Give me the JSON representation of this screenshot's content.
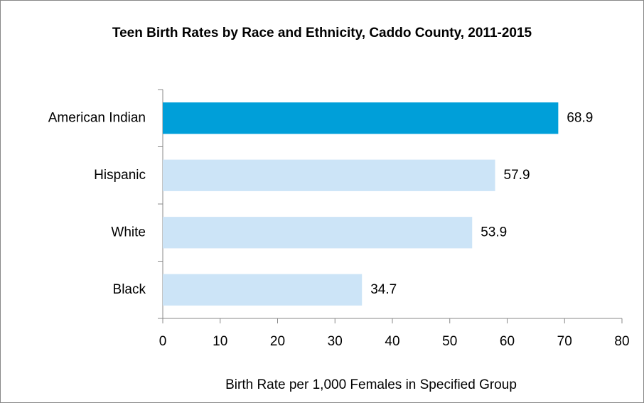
{
  "chart_data": {
    "type": "bar",
    "orientation": "horizontal",
    "title": "Teen Birth Rates by Race and Ethnicity, Caddo County, 2011-2015",
    "categories": [
      "American Indian",
      "Hispanic",
      "White",
      "Black"
    ],
    "values": [
      68.9,
      57.9,
      53.9,
      34.7
    ],
    "colors": [
      "#009fd9",
      "#cce4f7",
      "#cce4f7",
      "#cce4f7"
    ],
    "xlabel": "Birth Rate per 1,000 Females in Specified Group",
    "xlim": [
      0,
      80
    ],
    "xticks": [
      0,
      10,
      20,
      30,
      40,
      50,
      60,
      70,
      80
    ],
    "grid": false
  }
}
